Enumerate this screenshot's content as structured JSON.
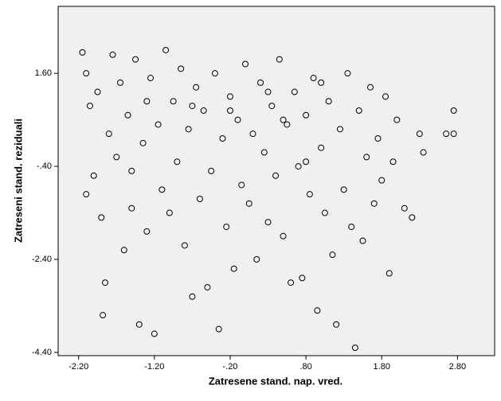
{
  "chart_data": {
    "type": "scatter",
    "x_label": "Zatresene stand. nap. vred.",
    "y_label": "Zatreseni stand. reziduali",
    "xlim": [
      -2.47,
      3.29
    ],
    "ylim": [
      -4.47,
      3.04
    ],
    "xticks": [
      {
        "value": -2.2,
        "label": "-2.20"
      },
      {
        "value": -1.2,
        "label": "-1.20"
      },
      {
        "value": -0.2,
        "label": "-.20"
      },
      {
        "value": 0.8,
        "label": ".80"
      },
      {
        "value": 1.8,
        "label": "1.80"
      },
      {
        "value": 2.8,
        "label": "2.80"
      }
    ],
    "yticks": [
      {
        "value": 1.6,
        "label": "1.60"
      },
      {
        "value": -0.4,
        "label": "-.40"
      },
      {
        "value": -2.4,
        "label": "-2.40"
      },
      {
        "value": -4.4,
        "label": "-4.40"
      }
    ],
    "color": "#000000",
    "background": "#f0f0f0",
    "x": [
      -2.15,
      -2.1,
      -2.05,
      -2.1,
      -2.0,
      -1.95,
      -1.9,
      -1.85,
      -1.88,
      -1.8,
      -1.75,
      -1.7,
      -1.65,
      -1.6,
      -1.55,
      -1.5,
      -1.45,
      -1.4,
      -1.35,
      -1.3,
      -1.25,
      -1.2,
      -1.15,
      -1.1,
      -1.05,
      -1.0,
      -0.95,
      -0.9,
      -0.85,
      -0.8,
      -0.75,
      -0.7,
      -0.65,
      -0.6,
      -0.55,
      -0.5,
      -0.45,
      -0.4,
      -0.35,
      -0.3,
      -0.25,
      -0.2,
      -0.15,
      -0.1,
      -0.05,
      0.0,
      0.05,
      0.1,
      0.15,
      0.2,
      0.25,
      0.3,
      0.35,
      0.4,
      0.45,
      0.5,
      0.55,
      0.6,
      0.65,
      0.7,
      0.75,
      0.8,
      0.85,
      0.9,
      0.95,
      1.0,
      1.05,
      1.1,
      1.15,
      1.2,
      1.25,
      1.3,
      1.35,
      1.4,
      1.45,
      1.5,
      1.55,
      1.6,
      1.65,
      1.7,
      1.75,
      1.8,
      1.85,
      1.9,
      1.95,
      2.0,
      2.1,
      2.2,
      2.3,
      2.35,
      2.65,
      2.75,
      2.75,
      -1.3,
      -0.2,
      0.5,
      0.3,
      -0.7,
      1.0,
      -1.5,
      0.8
    ],
    "y": [
      2.05,
      1.6,
      0.9,
      -1.0,
      -0.6,
      1.2,
      -1.5,
      -2.9,
      -3.6,
      0.3,
      2.0,
      -0.2,
      1.4,
      -2.2,
      0.7,
      -1.3,
      1.9,
      -3.8,
      0.1,
      -1.8,
      1.5,
      -4.0,
      0.5,
      -0.9,
      2.1,
      -1.4,
      1.0,
      -0.3,
      1.7,
      -2.1,
      0.4,
      -3.2,
      1.3,
      -1.1,
      0.8,
      -3.0,
      -0.5,
      1.6,
      -3.9,
      0.2,
      -1.7,
      1.1,
      -2.6,
      0.6,
      -0.8,
      1.8,
      -1.2,
      0.3,
      -2.4,
      1.4,
      -0.1,
      -1.6,
      0.9,
      -0.6,
      1.9,
      -1.9,
      0.5,
      -2.9,
      1.2,
      -0.4,
      -2.8,
      0.7,
      -1.0,
      1.5,
      -3.5,
      0.0,
      -1.4,
      1.0,
      -2.3,
      -3.8,
      0.4,
      -0.9,
      1.6,
      -1.7,
      -4.3,
      0.8,
      -2.0,
      -0.2,
      1.3,
      -1.2,
      0.2,
      -0.7,
      1.1,
      -2.7,
      -0.3,
      0.6,
      -1.3,
      -1.5,
      0.3,
      -0.1,
      0.3,
      0.3,
      0.8,
      1.0,
      0.8,
      0.6,
      1.2,
      0.9,
      1.4,
      -0.5,
      -0.3
    ]
  }
}
